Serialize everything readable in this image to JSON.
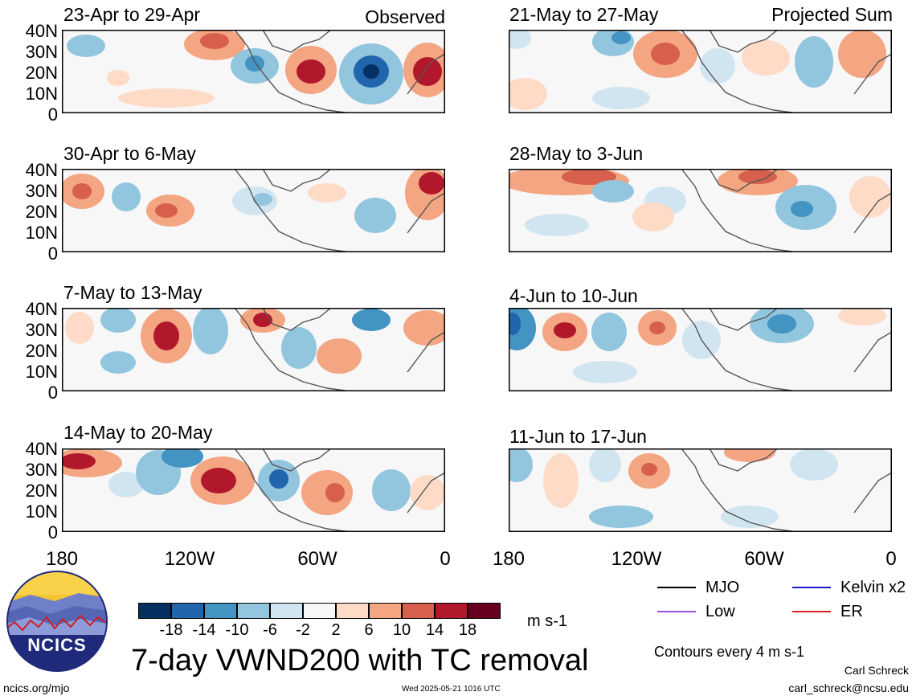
{
  "panels_left": [
    {
      "title": "23-Apr to 29-Apr",
      "tag": "Observed"
    },
    {
      "title": "30-Apr to 6-May",
      "tag": ""
    },
    {
      "title": "7-May to 13-May",
      "tag": ""
    },
    {
      "title": "14-May to 20-May",
      "tag": ""
    }
  ],
  "panels_right": [
    {
      "title": "21-May to 27-May",
      "tag": "Projected Sum"
    },
    {
      "title": "28-May to 3-Jun",
      "tag": ""
    },
    {
      "title": "4-Jun to 10-Jun",
      "tag": ""
    },
    {
      "title": "11-Jun to 17-Jun",
      "tag": ""
    }
  ],
  "y_ticks": [
    "40N",
    "30N",
    "20N",
    "10N",
    "0"
  ],
  "x_ticks": [
    "180",
    "120W",
    "60W",
    "0"
  ],
  "colorbar": {
    "colors": [
      "#053061",
      "#2166ac",
      "#4393c3",
      "#92c5de",
      "#d1e5f0",
      "#f7f7f7",
      "#fddbc7",
      "#f4a582",
      "#d6604d",
      "#b2182b",
      "#67001f"
    ],
    "labels": [
      "-18",
      "-14",
      "-10",
      "-6",
      "-2",
      "2",
      "6",
      "10",
      "14",
      "18"
    ],
    "units": "m s-1"
  },
  "legend": {
    "mjo": {
      "label": "MJO",
      "color": "#000000"
    },
    "kelvin": {
      "label": "Kelvin x2",
      "color": "#1a1acc"
    },
    "low": {
      "label": "Low",
      "color": "#a050e0"
    },
    "er": {
      "label": "ER",
      "color": "#e02020"
    }
  },
  "contours_note": "Contours every 4 m s-1",
  "main_title": "7-day VWND200 with TC removal",
  "logo_text": "NCICS",
  "footer": {
    "url": "ncics.org/mjo",
    "timestamp": "Wed 2025-05-21 1016 UTC",
    "author": "Carl Schreck",
    "email": "carl_schreck@ncsu.edu"
  }
}
